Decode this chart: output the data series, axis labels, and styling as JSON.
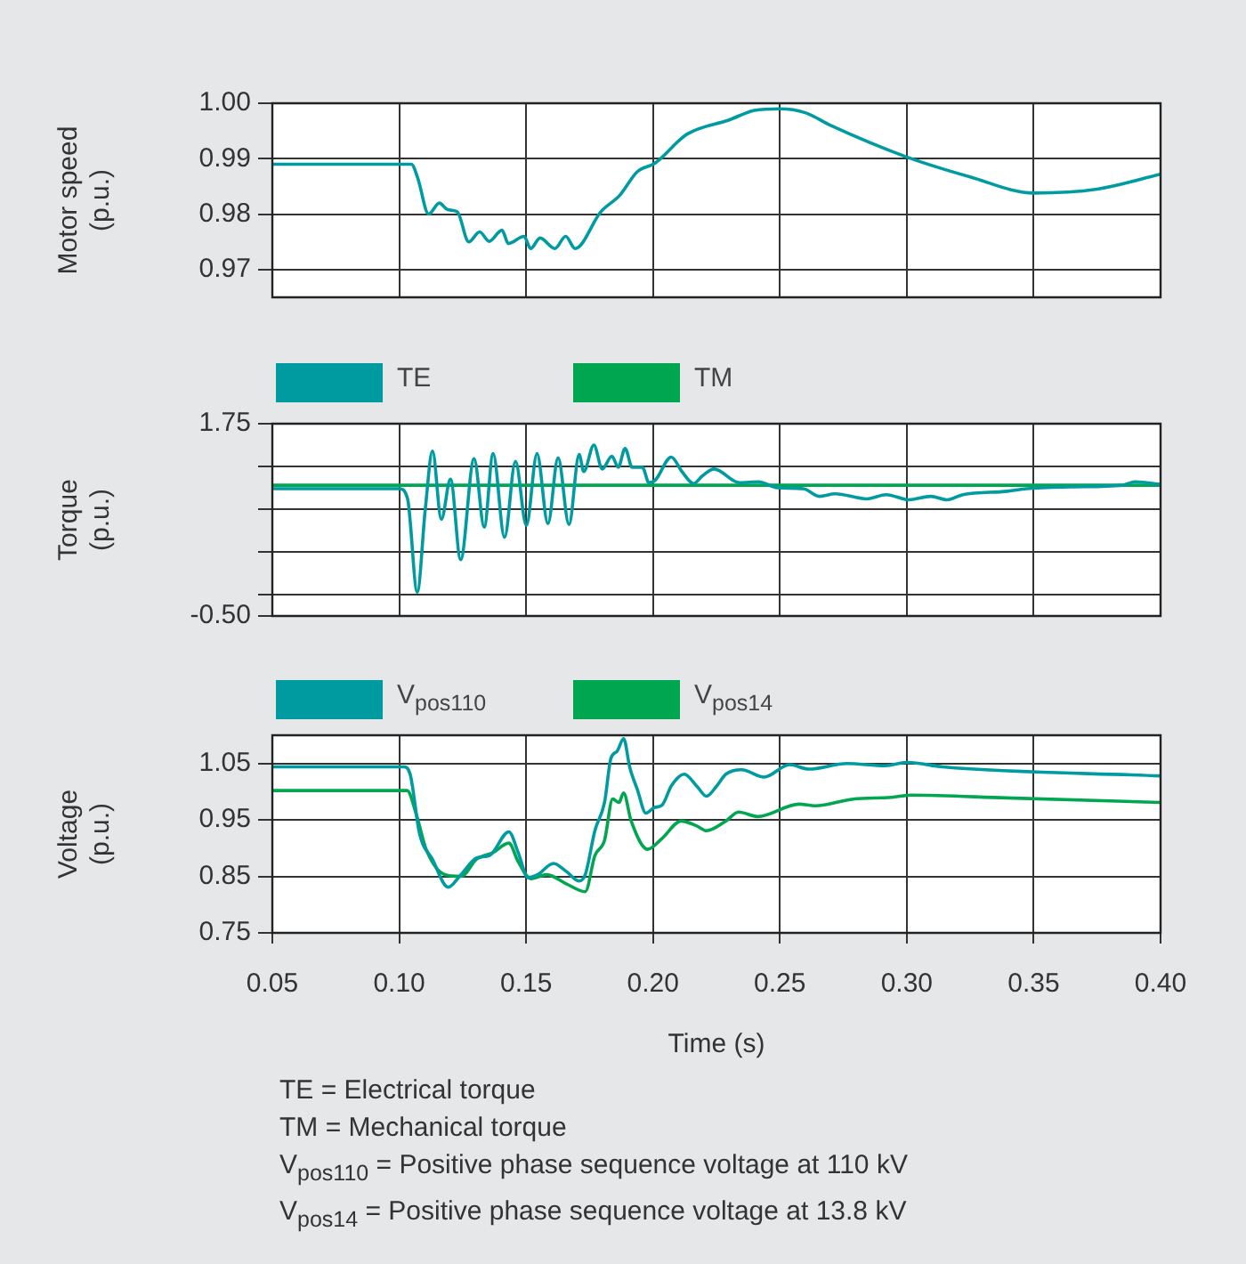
{
  "chart_data": [
    {
      "type": "line",
      "ylabel": "Motor speed (p.u.)",
      "xlim": [
        0.05,
        0.4
      ],
      "xticks": [
        0.05,
        0.1,
        0.15,
        0.2,
        0.25,
        0.3,
        0.35,
        0.4
      ],
      "ylim": [
        0.965,
        1.0
      ],
      "yticks": [
        0.97,
        0.98,
        0.99,
        {
          "value": 1.0,
          "label": "1.00"
        }
      ],
      "grid": true,
      "tick_labels": "y",
      "legend": false,
      "series": [
        {
          "color": "#009ba0",
          "x": [
            0.05,
            0.1048,
            0.1073,
            0.1116,
            0.1158,
            0.1191,
            0.1229,
            0.1274,
            0.1317,
            0.1354,
            0.1405,
            0.143,
            0.1492,
            0.1518,
            0.1555,
            0.1613,
            0.1656,
            0.1693,
            0.1794,
            0.1869,
            0.1937,
            0.2008,
            0.2133,
            0.23,
            0.24,
            0.25,
            0.26,
            0.27,
            0.3,
            0.325,
            0.35,
            0.375,
            0.4
          ],
          "values": [
            0.989,
            0.989,
            0.9865,
            0.98,
            0.982,
            0.9808,
            0.9804,
            0.975,
            0.9768,
            0.9751,
            0.9771,
            0.9747,
            0.976,
            0.9738,
            0.9757,
            0.9738,
            0.976,
            0.9738,
            0.9804,
            0.9834,
            0.9876,
            0.9892,
            0.9944,
            0.997,
            0.9987,
            0.999,
            0.9983,
            0.996,
            0.9903,
            0.9867,
            0.9838,
            0.9845,
            0.9872
          ]
        }
      ]
    },
    {
      "type": "line",
      "ylabel": "Torque (p.u.)",
      "xlim": [
        0.05,
        0.4
      ],
      "xticks": [
        0.05,
        0.1,
        0.15,
        0.2,
        0.25,
        0.3,
        0.35,
        0.4
      ],
      "ylim": [
        -0.5,
        1.75
      ],
      "yticks": [
        {
          "value": -0.5,
          "label": "-0.50"
        },
        {
          "value": -0.25,
          "label": null
        },
        {
          "value": 0.25,
          "label": null
        },
        {
          "value": 0.75,
          "label": null
        },
        {
          "value": 1.25,
          "label": null
        },
        1.75
      ],
      "grid": true,
      "tick_labels": "y",
      "legend": "top left",
      "series": [
        {
          "name": "TE",
          "color": "#009ba0",
          "x": [
            0.05,
            0.1,
            0.1033,
            0.1071,
            0.1103,
            0.1131,
            0.1166,
            0.1202,
            0.1242,
            0.1295,
            0.1335,
            0.137,
            0.1415,
            0.1458,
            0.1501,
            0.1543,
            0.1586,
            0.1626,
            0.1669,
            0.1709,
            0.1727,
            0.1767,
            0.18,
            0.1838,
            0.1863,
            0.189,
            0.1918,
            0.1958,
            0.1984,
            0.2009,
            0.2072,
            0.2114,
            0.216,
            0.2195,
            0.224,
            0.2341,
            0.2416,
            0.2491,
            0.2592,
            0.2655,
            0.2718,
            0.2843,
            0.2919,
            0.3007,
            0.3095,
            0.3158,
            0.3221,
            0.3397,
            0.3472,
            0.3648,
            0.3849,
            0.39,
            0.4
          ],
          "values": [
            0.99,
            0.99,
            0.87,
            -0.22,
            0.76,
            1.43,
            0.63,
            1.1,
            0.16,
            1.34,
            0.54,
            1.4,
            0.42,
            1.31,
            0.56,
            1.4,
            0.58,
            1.35,
            0.57,
            1.39,
            1.19,
            1.5,
            1.22,
            1.37,
            1.24,
            1.46,
            1.24,
            1.24,
            1.06,
            1.09,
            1.36,
            1.19,
            1.05,
            1.14,
            1.22,
            1.06,
            1.07,
            1.0,
            0.99,
            0.9,
            0.93,
            0.87,
            0.92,
            0.86,
            0.9,
            0.86,
            0.92,
            0.96,
            0.99,
            1.01,
            1.03,
            1.07,
            1.04
          ]
        },
        {
          "name": "TM",
          "color": "#00a650",
          "x": [
            0.05,
            0.4
          ],
          "values": [
            1.03,
            1.03
          ]
        }
      ]
    },
    {
      "type": "line",
      "ylabel": "Voltage (p.u.)",
      "xlabel": "Time (s)",
      "xlim": [
        0.05,
        0.4
      ],
      "xticks": [
        0.05,
        {
          "value": 0.1,
          "label": "0.10"
        },
        0.15,
        {
          "value": 0.2,
          "label": "0.20"
        },
        0.25,
        {
          "value": 0.3,
          "label": "0.30"
        },
        0.35,
        {
          "value": 0.4,
          "label": "0.40"
        }
      ],
      "ylim": [
        0.75,
        1.1
      ],
      "yticks": [
        0.75,
        0.85,
        0.95,
        1.05
      ],
      "grid": true,
      "legend": "top left",
      "annotations": [
        "TE = Electrical torque",
        "TM = Mechanical torque",
        "V$_{pos110}$ = Positive phase sequence voltage at 110 kV",
        "V$_{pos14}$ = Positive phase sequence voltage at 13.8 kV"
      ],
      "series": [
        {
          "name": "V$_{pos110}$",
          "color": "#009ba0",
          "x": [
            0.05,
            0.1018,
            0.1043,
            0.108,
            0.113,
            0.1193,
            0.1243,
            0.1306,
            0.1356,
            0.1432,
            0.1469,
            0.1507,
            0.1545,
            0.1608,
            0.1658,
            0.1708,
            0.1733,
            0.1771,
            0.1809,
            0.1834,
            0.1859,
            0.1884,
            0.1909,
            0.1939,
            0.1972,
            0.2005,
            0.2035,
            0.2073,
            0.2123,
            0.2174,
            0.2211,
            0.2249,
            0.2287,
            0.2349,
            0.2438,
            0.2538,
            0.2613,
            0.2764,
            0.2915,
            0.3003,
            0.3141,
            0.4
          ],
          "values": [
            1.044,
            1.044,
            1.031,
            0.926,
            0.881,
            0.831,
            0.853,
            0.883,
            0.887,
            0.929,
            0.892,
            0.848,
            0.853,
            0.873,
            0.859,
            0.842,
            0.853,
            0.931,
            0.981,
            1.059,
            1.072,
            1.094,
            1.042,
            1.003,
            0.962,
            0.972,
            0.976,
            1.011,
            1.031,
            1.009,
            0.992,
            1.009,
            1.031,
            1.039,
            1.026,
            1.048,
            1.04,
            1.05,
            1.046,
            1.052,
            1.044,
            1.028
          ]
        },
        {
          "name": "V$_{pos14}$",
          "color": "#00a650",
          "x": [
            0.05,
            0.1031,
            0.1068,
            0.1106,
            0.1181,
            0.1243,
            0.1306,
            0.1369,
            0.1432,
            0.1469,
            0.1519,
            0.1582,
            0.1658,
            0.1733,
            0.1771,
            0.1809,
            0.1841,
            0.1866,
            0.1884,
            0.1914,
            0.1979,
            0.2035,
            0.2111,
            0.2174,
            0.2211,
            0.2287,
            0.2337,
            0.2412,
            0.2576,
            0.2639,
            0.2789,
            0.294,
            0.3016,
            0.3393,
            0.4
          ],
          "values": [
            1.002,
            1.002,
            0.959,
            0.898,
            0.853,
            0.85,
            0.881,
            0.892,
            0.909,
            0.876,
            0.846,
            0.853,
            0.837,
            0.823,
            0.887,
            0.914,
            0.987,
            0.981,
            0.998,
            0.948,
            0.898,
            0.917,
            0.948,
            0.939,
            0.931,
            0.948,
            0.964,
            0.956,
            0.978,
            0.975,
            0.987,
            0.99,
            0.994,
            0.989,
            0.981
          ]
        }
      ]
    }
  ]
}
